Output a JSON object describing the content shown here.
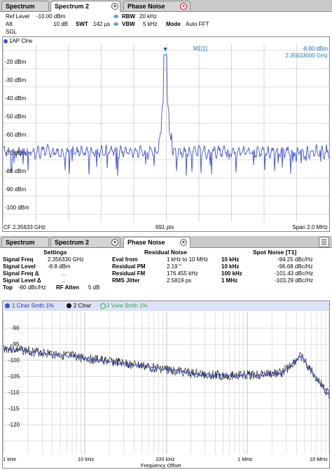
{
  "top_tabs": [
    {
      "label": "Spectrum"
    },
    {
      "label": "Spectrum 2"
    },
    {
      "label": "Phase Noise"
    }
  ],
  "spectrum": {
    "ref_level_label": "Ref Level",
    "ref_level_value": "-10.00 dBm",
    "att_label": "Att",
    "att_value": "10 dB",
    "swt_label": "SWT",
    "swt_value": "142 µs",
    "rbw_label": "RBW",
    "rbw_value": "20 kHz",
    "vbw_label": "VBW",
    "vbw_value": "5 kHz",
    "mode_label": "Mode",
    "mode_value": "Auto FFT",
    "sgl": "SGL",
    "trace_label": "1AP Clrw",
    "marker_name": "M1[1]",
    "marker_level": "-8.80 dBm",
    "marker_freq": "2.35633000 GHz",
    "y_ticks": [
      "-20 dBm",
      "-30 dBm",
      "-40 dBm",
      "-50 dBm",
      "-60 dBm",
      "-70 dBm",
      "-80 dBm",
      "-90 dBm",
      "-100 dBm"
    ],
    "footer_cf": "CF 2.35633 GHz",
    "footer_pts": "691 pts",
    "footer_span": "Span 2.0 MHz"
  },
  "bottom_tabs": [
    {
      "label": "Spectrum"
    },
    {
      "label": "Spectrum 2"
    },
    {
      "label": "Phase Noise"
    }
  ],
  "settings": {
    "title": "Settings",
    "rows": [
      {
        "label": "Signal Freq",
        "value": "2.356330 GHz"
      },
      {
        "label": "Signal Level",
        "value": "-8.8  dBm"
      },
      {
        "label": "Signal Freq Δ",
        "value": "..."
      },
      {
        "label": "Signal Level Δ",
        "value": "..."
      }
    ],
    "top_label": "Top",
    "top_value": "-80 dBc/Hz",
    "rf_atten_label": "RF Atten",
    "rf_atten_value": "5 dB"
  },
  "residual": {
    "title": "Residual Noise",
    "rows": [
      {
        "label": "Eval from",
        "value": "1 kHz to 10 MHz"
      },
      {
        "label": "Residual PM",
        "value": "2.19 °"
      },
      {
        "label": "Residual FM",
        "value": "176.455 kHz"
      },
      {
        "label": "RMS Jitter",
        "value": "2.5819 ps"
      }
    ]
  },
  "spot": {
    "title": "Spot Noise [T1]",
    "rows": [
      {
        "label": "10 kHz",
        "value": "-94.25 dBc/Hz"
      },
      {
        "label": "10 kHz",
        "value": "-96.68 dBc/Hz"
      },
      {
        "label": "100 kHz",
        "value": "-101.43 dBc/Hz"
      },
      {
        "label": "1 MHz",
        "value": "-103.29 dBc/Hz"
      }
    ]
  },
  "pn_legend": {
    "t1": "1 Clrwr Smth 1%",
    "t2": "2 Clrwr",
    "t3": "3 View Smth 1%"
  },
  "pn_axis": {
    "y_ticks": [
      "-90",
      "-95",
      "-100",
      "-105",
      "-110",
      "-115",
      "-120"
    ],
    "x_ticks": [
      "1 kHz",
      "10 kHz",
      "100 kHz",
      "1 MHz",
      "10 MHz"
    ],
    "x_label": "Frequency Offset"
  },
  "colors": {
    "trace_blue": "#3b4fd8",
    "marker": "#1a73b8",
    "trace_green": "#2ea84a",
    "tab_close_red": "#d00000"
  }
}
